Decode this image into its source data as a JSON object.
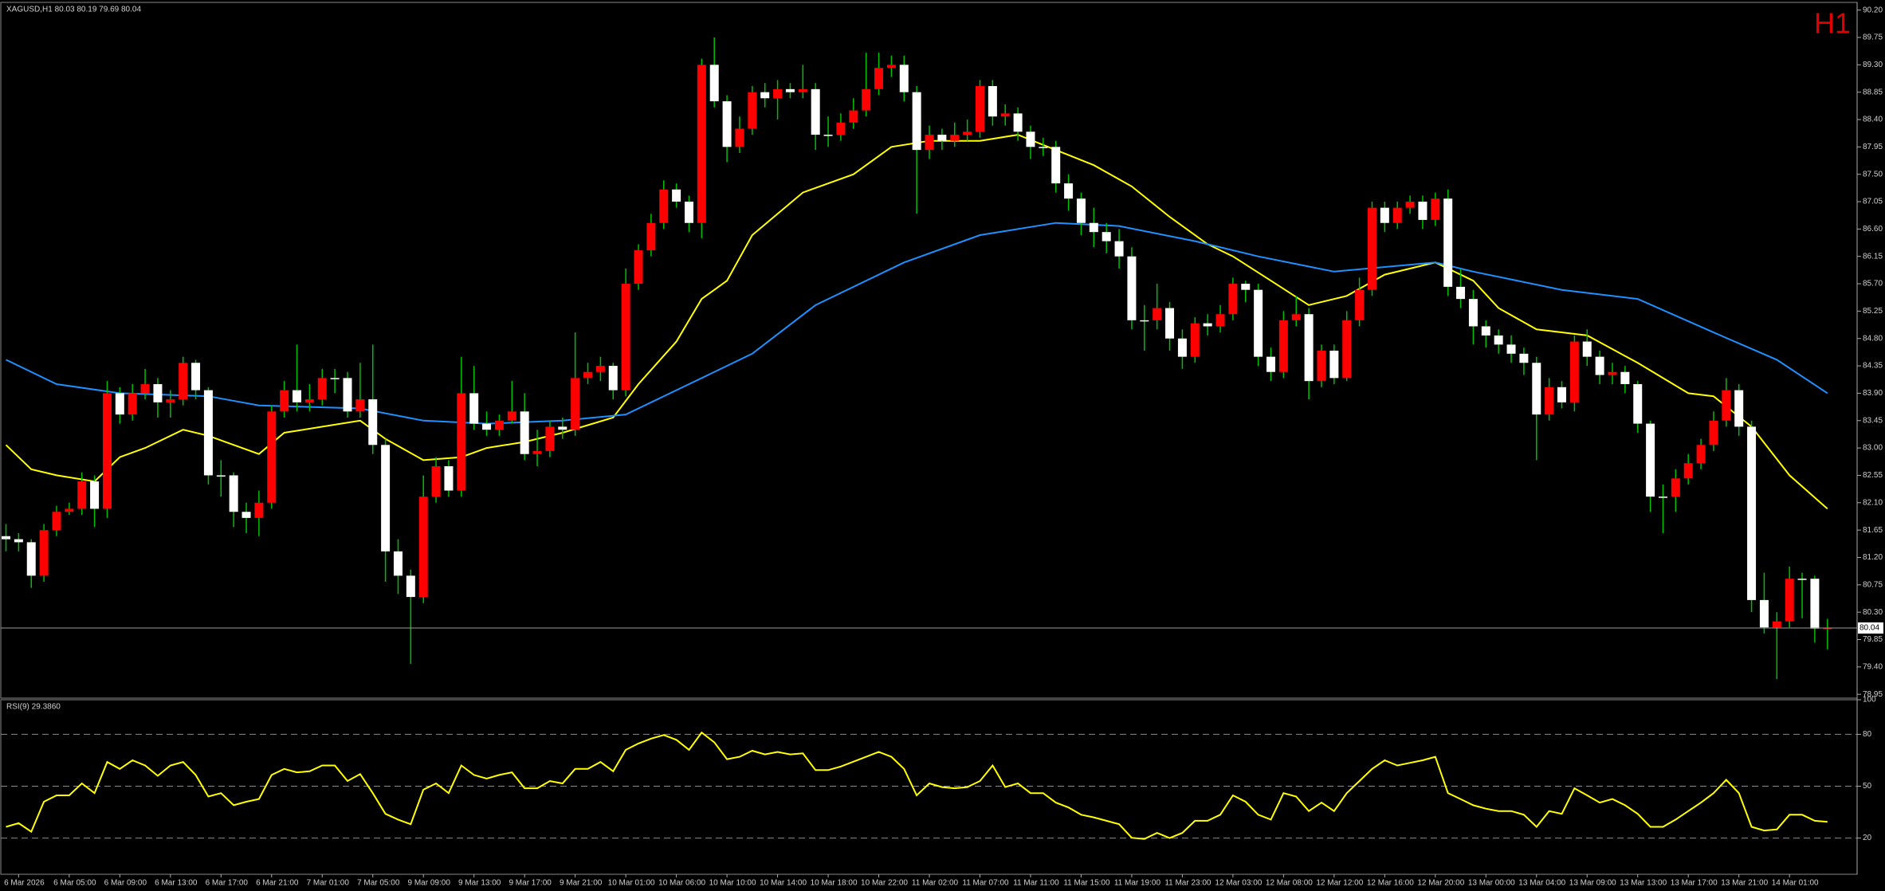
{
  "chart_data": [
    {
      "type": "candlestick",
      "title": "XAGUSD,H1  80.03 80.19 79.69 80.04",
      "annotation": "H1",
      "categories": [
        null,
        "6 Mar 2026",
        null,
        null,
        null,
        "6 Mar 05:00",
        null,
        null,
        null,
        "6 Mar 09:00",
        null,
        null,
        null,
        "6 Mar 13:00",
        null,
        null,
        null,
        "6 Mar 17:00",
        null,
        null,
        null,
        "6 Mar 21:00",
        null,
        null,
        null,
        "7 Mar 01:00",
        null,
        null,
        null,
        "7 Mar 05:00",
        null,
        null,
        null,
        "9 Mar 09:00",
        null,
        null,
        null,
        "9 Mar 13:00",
        null,
        null,
        null,
        "9 Mar 17:00",
        null,
        null,
        null,
        "9 Mar 21:00",
        null,
        null,
        null,
        "10 Mar 01:00",
        null,
        null,
        null,
        "10 Mar 06:00",
        null,
        null,
        null,
        "10 Mar 10:00",
        null,
        null,
        null,
        "10 Mar 14:00",
        null,
        null,
        null,
        "10 Mar 18:00",
        null,
        null,
        null,
        "10 Mar 22:00",
        null,
        null,
        null,
        "11 Mar 02:00",
        null,
        null,
        null,
        "11 Mar 07:00",
        null,
        null,
        null,
        "11 Mar 11:00",
        null,
        null,
        null,
        "11 Mar 15:00",
        null,
        null,
        null,
        "11 Mar 19:00",
        null,
        null,
        null,
        "11 Mar 23:00",
        null,
        null,
        null,
        "12 Mar 03:00",
        null,
        null,
        null,
        "12 Mar 08:00",
        null,
        null,
        null,
        "12 Mar 12:00",
        null,
        null,
        null,
        "12 Mar 16:00",
        null,
        null,
        null,
        "12 Mar 20:00",
        null,
        null,
        null,
        "13 Mar 00:00",
        null,
        null,
        null,
        "13 Mar 04:00",
        null,
        null,
        null,
        "13 Mar 09:00",
        null,
        null,
        null,
        "13 Mar 13:00",
        null,
        null,
        null,
        "13 Mar 17:00",
        null,
        null,
        null,
        "13 Mar 21:00",
        null,
        null,
        null,
        "14 Mar 01:00",
        null,
        null,
        null
      ],
      "open": [
        81.55,
        81.5,
        81.45,
        80.9,
        81.65,
        81.95,
        82.0,
        82.45,
        82.0,
        83.9,
        83.55,
        83.9,
        84.05,
        83.75,
        83.8,
        84.4,
        83.95,
        82.55,
        82.55,
        81.95,
        81.85,
        82.1,
        83.6,
        83.95,
        83.75,
        83.8,
        84.15,
        84.15,
        83.6,
        83.8,
        83.05,
        81.3,
        80.9,
        80.55,
        82.2,
        82.7,
        82.3,
        83.9,
        83.4,
        83.3,
        83.45,
        83.6,
        82.9,
        82.95,
        83.35,
        83.3,
        84.15,
        84.25,
        84.35,
        83.95,
        85.7,
        86.25,
        86.7,
        87.25,
        87.05,
        86.7,
        89.3,
        88.7,
        87.95,
        88.25,
        88.85,
        88.75,
        88.9,
        88.85,
        88.9,
        88.15,
        88.15,
        88.35,
        88.55,
        88.9,
        89.25,
        89.3,
        88.85,
        87.9,
        88.15,
        88.05,
        88.15,
        88.2,
        88.95,
        88.45,
        88.5,
        88.2,
        87.95,
        87.95,
        87.35,
        87.1,
        86.7,
        86.55,
        86.4,
        86.15,
        85.1,
        85.1,
        85.3,
        84.8,
        84.5,
        85.05,
        85.0,
        85.2,
        85.7,
        85.6,
        84.5,
        84.25,
        85.1,
        85.2,
        84.1,
        84.6,
        84.15,
        85.1,
        85.6,
        86.95,
        86.7,
        86.95,
        87.05,
        86.75,
        87.1,
        85.65,
        85.45,
        85.0,
        84.85,
        84.7,
        84.55,
        84.4,
        83.55,
        84.0,
        83.75,
        84.75,
        84.5,
        84.2,
        84.25,
        84.05,
        83.4,
        82.2,
        82.2,
        82.5,
        82.75,
        83.05,
        83.45,
        83.95,
        83.35,
        80.5,
        80.05,
        80.15,
        80.85,
        80.85,
        80.03
      ],
      "high": [
        81.75,
        81.6,
        81.5,
        81.75,
        82.05,
        82.1,
        82.6,
        82.55,
        84.1,
        84.0,
        84.05,
        84.3,
        84.15,
        83.95,
        84.5,
        84.45,
        84.0,
        82.8,
        82.6,
        82.1,
        82.3,
        83.7,
        84.1,
        84.7,
        84.05,
        84.3,
        84.3,
        84.25,
        84.4,
        84.7,
        83.15,
        81.5,
        81.0,
        82.55,
        82.85,
        82.8,
        84.5,
        84.35,
        83.6,
        83.55,
        84.1,
        83.9,
        83.3,
        83.45,
        83.5,
        84.9,
        84.4,
        84.5,
        84.4,
        85.95,
        86.35,
        86.85,
        87.4,
        87.35,
        87.15,
        89.4,
        89.75,
        88.8,
        88.45,
        88.95,
        89.0,
        89.05,
        89.0,
        89.3,
        89.0,
        88.45,
        88.5,
        88.75,
        89.5,
        89.5,
        89.45,
        89.45,
        88.95,
        88.3,
        88.25,
        88.35,
        88.4,
        89.05,
        89.05,
        88.65,
        88.6,
        88.3,
        88.1,
        88.05,
        87.5,
        87.2,
        86.95,
        86.7,
        86.6,
        86.3,
        85.35,
        85.7,
        85.4,
        84.95,
        85.15,
        85.2,
        85.35,
        85.8,
        85.75,
        85.7,
        84.65,
        85.25,
        85.5,
        85.3,
        84.7,
        84.7,
        85.25,
        85.8,
        87.05,
        87.05,
        87.05,
        87.15,
        87.15,
        87.2,
        87.25,
        85.95,
        85.6,
        85.1,
        84.95,
        84.85,
        84.65,
        84.5,
        84.15,
        84.1,
        84.85,
        84.95,
        84.6,
        84.4,
        84.35,
        84.1,
        83.45,
        82.4,
        82.65,
        82.9,
        83.15,
        83.6,
        84.15,
        84.05,
        83.45,
        80.95,
        80.3,
        81.05,
        80.95,
        80.9,
        80.19
      ],
      "low": [
        81.3,
        81.3,
        80.7,
        80.8,
        81.55,
        81.9,
        81.9,
        81.7,
        81.85,
        83.4,
        83.45,
        83.8,
        83.5,
        83.5,
        83.7,
        83.8,
        82.4,
        82.2,
        81.7,
        81.6,
        81.55,
        82.0,
        83.5,
        83.6,
        83.6,
        83.7,
        83.9,
        83.5,
        83.5,
        82.9,
        80.8,
        80.6,
        79.45,
        80.45,
        82.1,
        82.2,
        82.2,
        83.3,
        83.2,
        83.2,
        83.4,
        82.8,
        82.7,
        82.85,
        83.15,
        83.2,
        84.05,
        84.1,
        83.8,
        83.85,
        85.6,
        86.15,
        86.6,
        86.95,
        86.55,
        86.45,
        88.6,
        87.7,
        87.85,
        88.15,
        88.6,
        88.4,
        88.75,
        88.75,
        87.9,
        87.95,
        88.05,
        88.25,
        88.45,
        88.8,
        89.1,
        88.7,
        86.85,
        87.75,
        87.9,
        87.95,
        88.05,
        88.1,
        88.3,
        88.3,
        88.05,
        87.75,
        87.8,
        87.2,
        86.9,
        86.5,
        86.3,
        86.2,
        85.95,
        84.95,
        84.6,
        84.95,
        84.6,
        84.3,
        84.4,
        84.85,
        84.9,
        85.1,
        85.4,
        84.35,
        84.1,
        84.15,
        85.0,
        83.8,
        84.0,
        84.05,
        84.1,
        85.0,
        85.5,
        86.55,
        86.6,
        86.85,
        86.6,
        86.65,
        85.5,
        85.3,
        84.7,
        84.65,
        84.55,
        84.4,
        84.2,
        82.8,
        83.45,
        83.65,
        83.6,
        84.35,
        84.05,
        84.05,
        83.9,
        83.25,
        81.95,
        81.6,
        81.95,
        82.4,
        82.65,
        82.95,
        83.35,
        83.2,
        80.3,
        79.95,
        79.2,
        80.05,
        80.2,
        79.8,
        79.69
      ],
      "close": [
        81.5,
        81.45,
        80.9,
        81.65,
        81.95,
        82.0,
        82.45,
        82.0,
        83.9,
        83.55,
        83.9,
        84.05,
        83.75,
        83.8,
        84.4,
        83.95,
        82.55,
        82.55,
        81.95,
        81.85,
        82.1,
        83.6,
        83.95,
        83.75,
        83.8,
        84.15,
        84.15,
        83.6,
        83.8,
        83.05,
        81.3,
        80.9,
        80.55,
        82.2,
        82.7,
        82.3,
        83.9,
        83.4,
        83.3,
        83.45,
        83.6,
        82.9,
        82.95,
        83.35,
        83.3,
        84.15,
        84.25,
        84.35,
        83.95,
        85.7,
        86.25,
        86.7,
        87.25,
        87.05,
        86.7,
        89.3,
        88.7,
        87.95,
        88.25,
        88.85,
        88.75,
        88.9,
        88.85,
        88.9,
        88.15,
        88.15,
        88.35,
        88.55,
        88.9,
        89.25,
        89.3,
        88.85,
        87.9,
        88.15,
        88.05,
        88.15,
        88.2,
        88.95,
        88.45,
        88.5,
        88.2,
        87.95,
        87.95,
        87.35,
        87.1,
        86.7,
        86.55,
        86.4,
        86.15,
        85.1,
        85.1,
        85.3,
        84.8,
        84.5,
        85.05,
        85.0,
        85.2,
        85.7,
        85.6,
        84.5,
        84.25,
        85.1,
        85.2,
        84.1,
        84.6,
        84.15,
        85.1,
        85.6,
        86.95,
        86.7,
        86.95,
        87.05,
        86.75,
        87.1,
        85.65,
        85.45,
        85.0,
        84.85,
        84.7,
        84.55,
        84.4,
        83.55,
        84.0,
        83.75,
        84.75,
        84.5,
        84.2,
        84.25,
        84.05,
        83.4,
        82.2,
        82.2,
        82.5,
        82.75,
        83.05,
        83.45,
        83.95,
        83.35,
        80.5,
        80.05,
        80.15,
        80.85,
        80.85,
        80.03,
        80.04
      ],
      "up_color": "#ff0000",
      "down_color": "#ffffff",
      "wick_color": "#00c000",
      "series": [
        {
          "color": "#ffff00",
          "x": [
            0,
            2,
            4,
            7,
            9,
            11,
            14,
            16,
            20,
            22,
            25,
            28,
            30,
            33,
            36,
            38,
            41,
            44,
            48,
            50,
            53,
            55,
            57,
            59,
            63,
            67,
            70,
            73,
            77,
            80,
            83,
            86,
            89,
            92,
            95,
            97,
            100,
            103,
            106,
            109,
            113,
            116,
            118,
            121,
            125,
            129,
            133,
            135,
            138,
            141,
            144
          ],
          "values": [
            83.05,
            82.65,
            82.55,
            82.45,
            82.85,
            83.0,
            83.3,
            83.2,
            82.9,
            83.25,
            83.35,
            83.45,
            83.15,
            82.8,
            82.85,
            83.0,
            83.1,
            83.25,
            83.5,
            84.05,
            84.75,
            85.45,
            85.75,
            86.5,
            87.2,
            87.5,
            87.95,
            88.05,
            88.05,
            88.15,
            87.9,
            87.65,
            87.3,
            86.8,
            86.35,
            86.15,
            85.75,
            85.35,
            85.5,
            85.85,
            86.05,
            85.75,
            85.3,
            84.95,
            84.85,
            84.4,
            83.9,
            83.85,
            83.35,
            82.55,
            82.0
          ]
        },
        {
          "color": "#1e90ff",
          "x": [
            0,
            4,
            9,
            16,
            20,
            28,
            33,
            38,
            44,
            49,
            54,
            59,
            64,
            71,
            77,
            83,
            88,
            94,
            99,
            105,
            113,
            116,
            123,
            129,
            135,
            140,
            144
          ],
          "values": [
            84.45,
            84.05,
            83.9,
            83.85,
            83.7,
            83.65,
            83.45,
            83.4,
            83.45,
            83.55,
            84.05,
            84.55,
            85.35,
            86.05,
            86.5,
            86.7,
            86.65,
            86.4,
            86.15,
            85.9,
            86.05,
            85.9,
            85.6,
            85.45,
            84.9,
            84.45,
            83.9
          ]
        }
      ],
      "ylim": [
        78.9,
        90.3
      ],
      "yticks": [
        {
          "value": 90.2,
          "label": "90.20"
        },
        89.75,
        {
          "value": 89.3,
          "label": "89.30"
        },
        88.85,
        {
          "value": 88.4,
          "label": "88.40"
        },
        87.95,
        {
          "value": 87.5,
          "label": "87.50"
        },
        87.05,
        {
          "value": 86.6,
          "label": "86.60"
        },
        86.15,
        {
          "value": 85.7,
          "label": "85.70"
        },
        85.25,
        {
          "value": 84.8,
          "label": "84.80"
        },
        84.35,
        {
          "value": 83.9,
          "label": "83.90"
        },
        83.45,
        {
          "value": 83.0,
          "label": "83.00"
        },
        82.55,
        {
          "value": 82.1,
          "label": "82.10"
        },
        81.65,
        {
          "value": 81.2,
          "label": "81.20"
        },
        80.75,
        {
          "value": 80.3,
          "label": "80.30"
        },
        79.85,
        {
          "value": 79.4,
          "label": "79.40"
        },
        78.95
      ]
    },
    {
      "type": "line",
      "title": "RSI(9) 29.3860",
      "color": "#ffff00",
      "values": [
        26.5,
        28.6,
        23.7,
        41,
        44.7,
        44.7,
        51.6,
        46,
        64,
        60,
        65,
        62,
        56,
        62,
        64,
        56.5,
        44,
        46,
        39,
        41,
        42.6,
        56.5,
        60,
        58,
        58.6,
        62,
        62,
        53,
        57,
        46,
        34,
        30.7,
        28,
        48,
        51.6,
        46,
        62,
        56.5,
        54.4,
        56.5,
        58,
        48.8,
        48.8,
        53,
        51.6,
        60,
        60,
        64,
        58.6,
        71,
        74.7,
        77.5,
        79.6,
        76.8,
        71,
        81,
        75.4,
        65.6,
        67,
        70.5,
        68.4,
        69.8,
        68.4,
        69,
        59.3,
        59.3,
        61.4,
        64.2,
        67,
        69.8,
        67,
        60,
        44.7,
        51.6,
        49.5,
        48.8,
        49.5,
        53,
        62,
        49.5,
        51.6,
        46,
        46,
        40.5,
        37.7,
        33.5,
        32,
        30,
        28,
        20.2,
        19.5,
        23,
        20,
        23,
        30,
        30,
        33.5,
        44.7,
        41,
        33.5,
        30.7,
        46,
        44,
        35.6,
        40.5,
        35.6,
        46,
        53,
        60,
        65,
        62,
        63.5,
        65,
        67,
        46,
        42.6,
        39,
        37,
        35.6,
        35.6,
        33.5,
        26.5,
        35.6,
        34,
        48.8,
        44.7,
        40.5,
        42.6,
        39,
        34,
        26.5,
        26.5,
        30.7,
        35.6,
        40.5,
        46,
        53.7,
        46,
        26.5,
        24.4,
        25,
        33.5,
        33.5,
        30,
        29.386
      ],
      "ylim": [
        0,
        100
      ],
      "yticks": [
        100,
        80,
        50,
        20
      ]
    }
  ]
}
